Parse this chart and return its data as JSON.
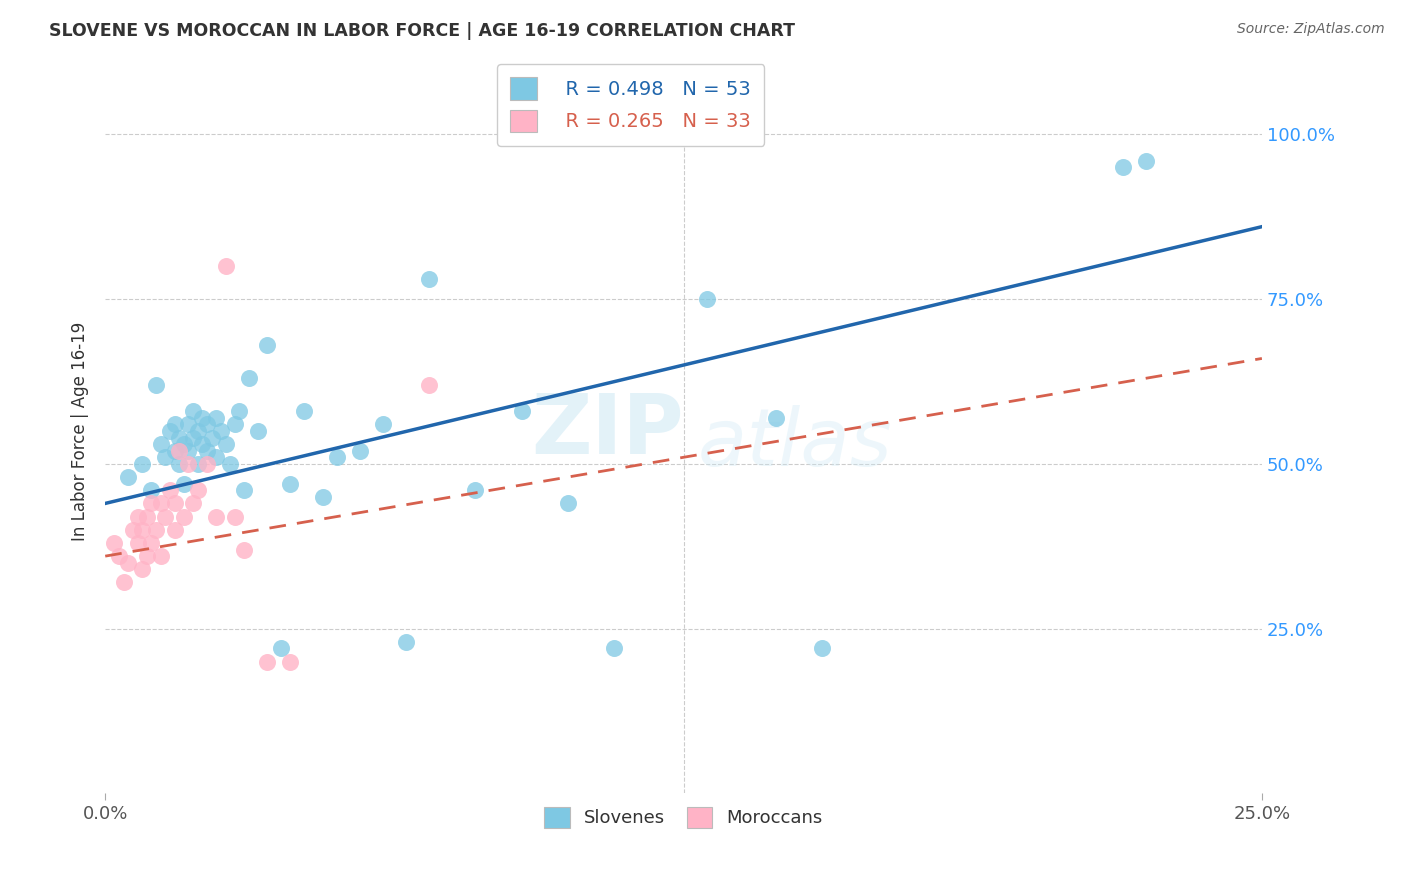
{
  "title": "SLOVENE VS MOROCCAN IN LABOR FORCE | AGE 16-19 CORRELATION CHART",
  "source": "Source: ZipAtlas.com",
  "ylabel": "In Labor Force | Age 16-19",
  "xlim": [
    0.0,
    0.25
  ],
  "ylim": [
    0.0,
    1.1
  ],
  "ytick_vals": [
    0.25,
    0.5,
    0.75,
    1.0
  ],
  "ytick_labels": [
    "25.0%",
    "50.0%",
    "75.0%",
    "100.0%"
  ],
  "xtick_vals": [
    0.0,
    0.25
  ],
  "xtick_labels": [
    "0.0%",
    "25.0%"
  ],
  "legend_blue_r": "R = 0.498",
  "legend_blue_n": "N = 53",
  "legend_pink_r": "R = 0.265",
  "legend_pink_n": "N = 33",
  "blue_color": "#7ec8e3",
  "pink_color": "#ffb3c6",
  "blue_line_color": "#2166ac",
  "pink_line_color": "#d6604d",
  "blue_line_x0": 0.0,
  "blue_line_y0": 0.44,
  "blue_line_x1": 0.25,
  "blue_line_y1": 0.86,
  "pink_line_x0": 0.0,
  "pink_line_y0": 0.36,
  "pink_line_x1": 0.25,
  "pink_line_y1": 0.66,
  "slovene_x": [
    0.005,
    0.008,
    0.01,
    0.011,
    0.012,
    0.013,
    0.014,
    0.015,
    0.015,
    0.016,
    0.016,
    0.017,
    0.017,
    0.018,
    0.018,
    0.019,
    0.019,
    0.02,
    0.02,
    0.021,
    0.021,
    0.022,
    0.022,
    0.023,
    0.024,
    0.024,
    0.025,
    0.026,
    0.027,
    0.028,
    0.029,
    0.03,
    0.031,
    0.033,
    0.035,
    0.038,
    0.04,
    0.043,
    0.047,
    0.05,
    0.055,
    0.06,
    0.065,
    0.07,
    0.08,
    0.09,
    0.1,
    0.11,
    0.13,
    0.145,
    0.155,
    0.22,
    0.225
  ],
  "slovene_y": [
    0.48,
    0.5,
    0.46,
    0.62,
    0.53,
    0.51,
    0.55,
    0.52,
    0.56,
    0.5,
    0.54,
    0.47,
    0.53,
    0.56,
    0.52,
    0.54,
    0.58,
    0.5,
    0.55,
    0.53,
    0.57,
    0.52,
    0.56,
    0.54,
    0.51,
    0.57,
    0.55,
    0.53,
    0.5,
    0.56,
    0.58,
    0.46,
    0.63,
    0.55,
    0.68,
    0.22,
    0.47,
    0.58,
    0.45,
    0.51,
    0.52,
    0.56,
    0.23,
    0.78,
    0.46,
    0.58,
    0.44,
    0.22,
    0.75,
    0.57,
    0.22,
    0.95,
    0.96
  ],
  "moroccan_x": [
    0.002,
    0.003,
    0.004,
    0.005,
    0.006,
    0.007,
    0.007,
    0.008,
    0.008,
    0.009,
    0.009,
    0.01,
    0.01,
    0.011,
    0.012,
    0.012,
    0.013,
    0.014,
    0.015,
    0.015,
    0.016,
    0.017,
    0.018,
    0.019,
    0.02,
    0.022,
    0.024,
    0.026,
    0.028,
    0.03,
    0.035,
    0.04,
    0.07
  ],
  "moroccan_y": [
    0.38,
    0.36,
    0.32,
    0.35,
    0.4,
    0.38,
    0.42,
    0.34,
    0.4,
    0.36,
    0.42,
    0.38,
    0.44,
    0.4,
    0.36,
    0.44,
    0.42,
    0.46,
    0.4,
    0.44,
    0.52,
    0.42,
    0.5,
    0.44,
    0.46,
    0.5,
    0.42,
    0.8,
    0.42,
    0.37,
    0.2,
    0.2,
    0.62
  ]
}
